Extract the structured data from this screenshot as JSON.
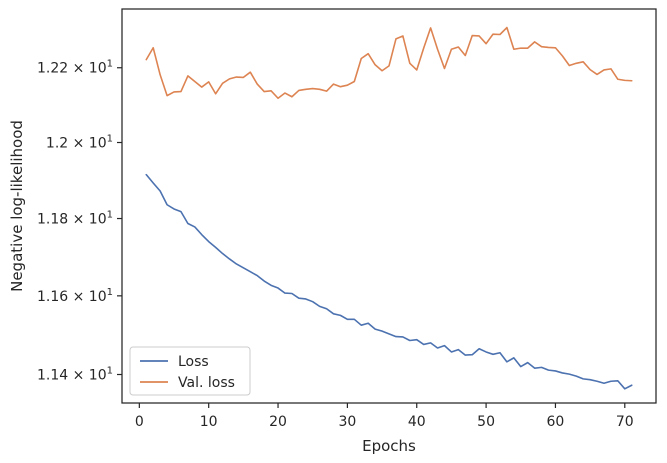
{
  "chart_data": {
    "type": "line",
    "xlabel": "Epochs",
    "ylabel": "Negative log-likelihood",
    "y_scale": "log",
    "xlim": [
      -2.5,
      74.5
    ],
    "ylim": [
      11.3284,
      12.3595
    ],
    "x_ticks": [
      0,
      10,
      20,
      30,
      40,
      50,
      60,
      70
    ],
    "x_tick_labels": [
      "0",
      "10",
      "20",
      "30",
      "40",
      "50",
      "60",
      "70"
    ],
    "y_ticks": [
      11.4,
      11.6,
      11.8,
      12.0,
      12.2
    ],
    "y_tick_labels": [
      {
        "mantissa": "1.14",
        "exp": "1"
      },
      {
        "mantissa": "1.16",
        "exp": "1"
      },
      {
        "mantissa": "1.18",
        "exp": "1"
      },
      {
        "mantissa": "1.2",
        "exp": "1"
      },
      {
        "mantissa": "1.22",
        "exp": "1"
      }
    ],
    "grid": false,
    "legend_position": "lower-left",
    "x": [
      1,
      2,
      3,
      4,
      5,
      6,
      7,
      8,
      9,
      10,
      11,
      12,
      13,
      14,
      15,
      16,
      17,
      18,
      19,
      20,
      21,
      22,
      23,
      24,
      25,
      26,
      27,
      28,
      29,
      30,
      31,
      32,
      33,
      34,
      35,
      36,
      37,
      38,
      39,
      40,
      41,
      42,
      43,
      44,
      45,
      46,
      47,
      48,
      49,
      50,
      51,
      52,
      53,
      54,
      55,
      56,
      57,
      58,
      59,
      60,
      61,
      62,
      63,
      64,
      65,
      66,
      67,
      68,
      69,
      70,
      71
    ],
    "series": [
      {
        "name": "Loss",
        "color": "#4c72b0",
        "values": [
          11.915,
          11.893,
          11.872,
          11.836,
          11.825,
          11.818,
          11.787,
          11.778,
          11.758,
          11.74,
          11.725,
          11.709,
          11.695,
          11.682,
          11.672,
          11.662,
          11.652,
          11.638,
          11.627,
          11.62,
          11.607,
          11.606,
          11.594,
          11.592,
          11.585,
          11.573,
          11.567,
          11.554,
          11.55,
          11.54,
          11.54,
          11.525,
          11.53,
          11.515,
          11.51,
          11.503,
          11.496,
          11.495,
          11.486,
          11.488,
          11.476,
          11.48,
          11.467,
          11.473,
          11.457,
          11.463,
          11.449,
          11.45,
          11.465,
          11.457,
          11.451,
          11.455,
          11.432,
          11.442,
          11.42,
          11.43,
          11.416,
          11.418,
          11.411,
          11.409,
          11.404,
          11.401,
          11.396,
          11.389,
          11.387,
          11.383,
          11.378,
          11.383,
          11.384,
          11.364,
          11.373
        ]
      },
      {
        "name": "Val. loss",
        "color": "#dd8452",
        "values": [
          12.222,
          12.254,
          12.181,
          12.125,
          12.135,
          12.136,
          12.178,
          12.163,
          12.148,
          12.162,
          12.13,
          12.158,
          12.17,
          12.175,
          12.174,
          12.188,
          12.156,
          12.136,
          12.138,
          12.118,
          12.132,
          12.122,
          12.139,
          12.142,
          12.144,
          12.142,
          12.137,
          12.156,
          12.149,
          12.153,
          12.163,
          12.225,
          12.238,
          12.208,
          12.192,
          12.205,
          12.278,
          12.286,
          12.212,
          12.194,
          12.253,
          12.308,
          12.25,
          12.198,
          12.25,
          12.256,
          12.233,
          12.287,
          12.286,
          12.265,
          12.291,
          12.29,
          12.309,
          12.25,
          12.253,
          12.253,
          12.27,
          12.257,
          12.255,
          12.254,
          12.232,
          12.206,
          12.212,
          12.216,
          12.195,
          12.182,
          12.194,
          12.197,
          12.169,
          12.166,
          12.165
        ]
      }
    ]
  }
}
